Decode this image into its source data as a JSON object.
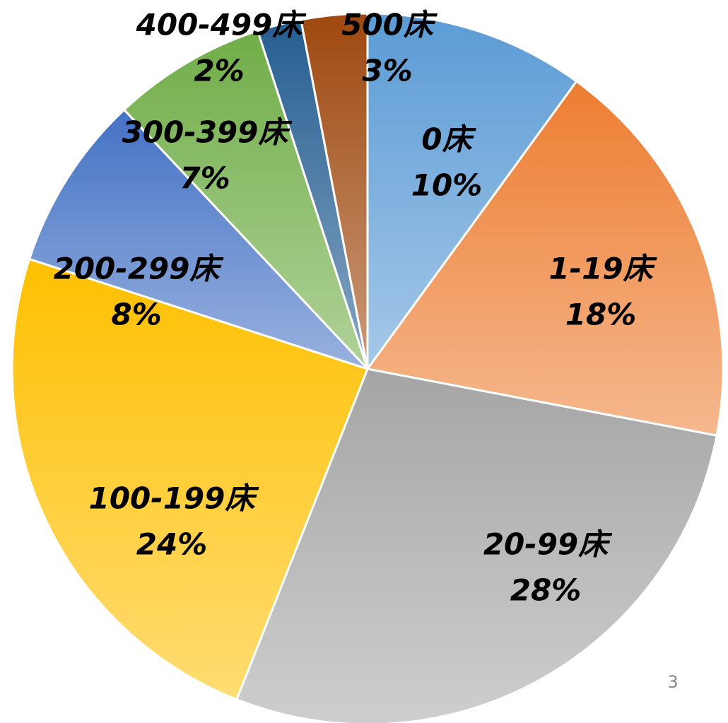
{
  "chart_data": {
    "type": "pie",
    "categories": [
      "0床",
      "1-19床",
      "20-99床",
      "100-199床",
      "200-299床",
      "300-399床",
      "400-499床",
      "500床"
    ],
    "values": [
      10,
      18,
      28,
      24,
      8,
      7,
      2,
      3
    ],
    "value_labels": [
      "10%",
      "18%",
      "28%",
      "24%",
      "8%",
      "7%",
      "2%",
      "3%"
    ],
    "colors": [
      "#5b9bd5",
      "#ed7d31",
      "#a5a5a5",
      "#ffc000",
      "#4472c4",
      "#70ad47",
      "#255e91",
      "#9e480e"
    ]
  },
  "page_number": "3"
}
